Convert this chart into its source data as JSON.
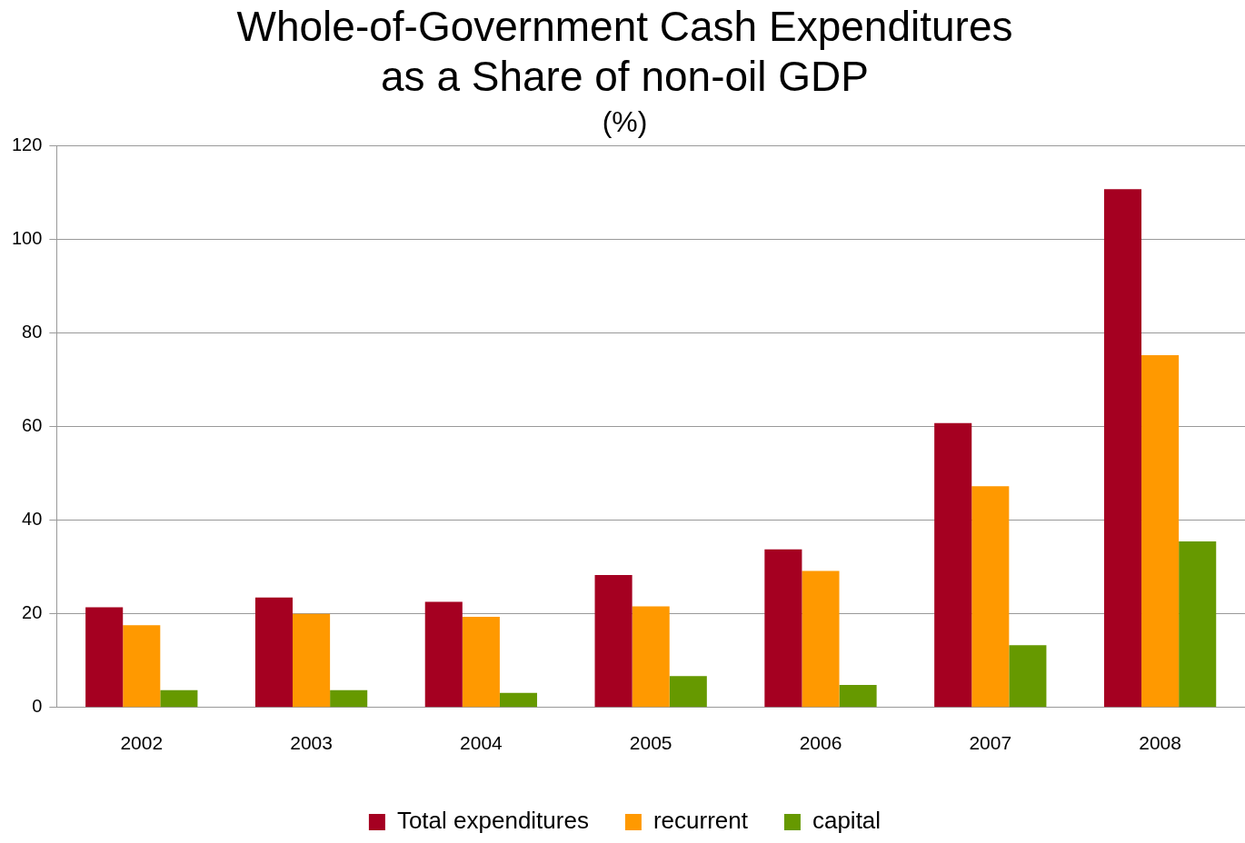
{
  "chart_data": {
    "type": "bar",
    "title": [
      "Whole-of-Government Cash Expenditures",
      "as a Share of non-oil GDP"
    ],
    "subtitle": "(%)",
    "categories": [
      "2002",
      "2003",
      "2004",
      "2005",
      "2006",
      "2007",
      "2008"
    ],
    "series": [
      {
        "name": "Total expenditures",
        "color": "#a50021",
        "values": [
          21.4,
          23.5,
          22.6,
          28.3,
          33.8,
          60.8,
          110.8
        ]
      },
      {
        "name": "recurrent",
        "color": "#ff9900",
        "values": [
          17.6,
          20.0,
          19.4,
          21.6,
          29.2,
          47.3,
          75.3
        ]
      },
      {
        "name": "capital",
        "color": "#669900",
        "values": [
          3.7,
          3.7,
          3.1,
          6.7,
          4.8,
          13.3,
          35.5
        ]
      }
    ],
    "ylim": [
      0,
      120
    ],
    "yticks": [
      0,
      20,
      40,
      60,
      80,
      100,
      120
    ],
    "grid": "y",
    "legend": "bottom"
  }
}
